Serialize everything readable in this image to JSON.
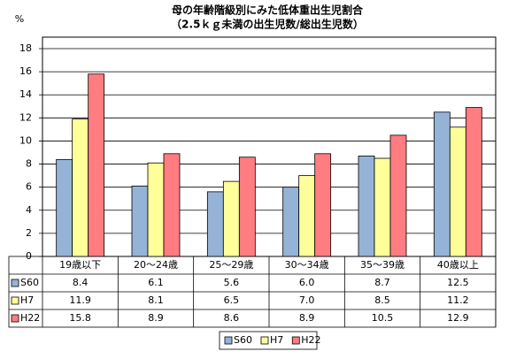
{
  "chart_data": {
    "type": "bar",
    "title": "母の年齢階級別にみた低体重出生児割合",
    "subtitle": "（2.5ｋｇ未満の出生児数/総出生児数）",
    "y_label": "%",
    "categories": [
      "19歳以下",
      "20～24歳",
      "25～29歳",
      "30～34歳",
      "35～39歳",
      "40歳以上"
    ],
    "series": [
      {
        "name": "S60",
        "color": "#95b3d7",
        "values": [
          8.4,
          6.1,
          5.6,
          6.0,
          8.7,
          12.5
        ],
        "value_labels": [
          "8.4",
          "6.1",
          "5.6",
          "6.0",
          "8.7",
          "12.5"
        ]
      },
      {
        "name": "H7",
        "color": "#ffff99",
        "values": [
          11.9,
          8.1,
          6.5,
          7.0,
          8.5,
          11.2
        ],
        "value_labels": [
          "11.9",
          "8.1",
          "6.5",
          "7.0",
          "8.5",
          "11.2"
        ]
      },
      {
        "name": "H22",
        "color": "#ff7c80",
        "values": [
          15.8,
          8.9,
          8.6,
          8.9,
          10.5,
          12.9
        ],
        "value_labels": [
          "15.8",
          "8.9",
          "8.6",
          "8.9",
          "10.5",
          "12.9"
        ]
      }
    ],
    "ylim": [
      0,
      18
    ],
    "yticks": [
      0,
      2,
      4,
      6,
      8,
      10,
      12,
      14,
      16,
      18
    ],
    "grid": true
  }
}
